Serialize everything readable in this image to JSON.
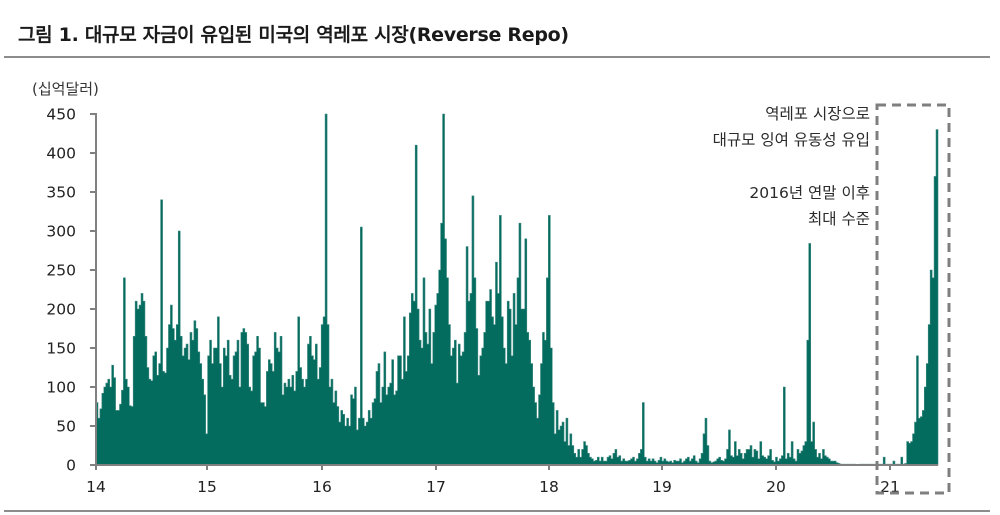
{
  "title": "그림 1. 대규모 자금이 유입된 미국의 역레포 시장(Reverse Repo)",
  "unit_label": "(십억달러)",
  "annotations": {
    "line1": "역레포 시장으로",
    "line2": "대규모 잉여 유동성 유입",
    "line3": "2016년 연말 이후",
    "line4": "최대 수준"
  },
  "colors": {
    "bar": "#046b5f",
    "axis": "#808080",
    "dash": "#7f7f7f",
    "text": "#222222"
  },
  "chart_data": {
    "type": "bar",
    "title": "그림 1. 대규모 자금이 유입된 미국의 역레포 시장(Reverse Repo)",
    "xlabel": "",
    "ylabel": "(십억달러)",
    "ylim": [
      0,
      450
    ],
    "yticks": [
      0,
      50,
      100,
      150,
      200,
      250,
      300,
      350,
      400,
      450
    ],
    "xticks": [
      "14",
      "15",
      "16",
      "17",
      "18",
      "19",
      "20",
      "21"
    ],
    "x_range": [
      "2014-01",
      "2021-06"
    ],
    "grid": false,
    "legend": null,
    "highlight_box": {
      "from": "2020-11",
      "to": "2021-06",
      "note": "역레포 시장으로 대규모 잉여 유동성 유입 / 2016년 연말 이후 최대 수준"
    },
    "series": [
      {
        "name": "Reverse Repo",
        "frequency": "weekly (approx.)",
        "values": [
          80,
          60,
          72,
          92,
          100,
          105,
          110,
          100,
          128,
          112,
          70,
          70,
          78,
          96,
          240,
          110,
          100,
          76,
          75,
          165,
          210,
          200,
          205,
          220,
          210,
          165,
          125,
          110,
          108,
          140,
          145,
          115,
          130,
          340,
          120,
          118,
          150,
          180,
          205,
          175,
          160,
          180,
          300,
          165,
          140,
          150,
          155,
          135,
          170,
          160,
          185,
          175,
          145,
          130,
          110,
          90,
          40,
          140,
          160,
          130,
          150,
          150,
          190,
          130,
          100,
          150,
          140,
          160,
          115,
          110,
          140,
          145,
          160,
          100,
          170,
          175,
          170,
          155,
          100,
          95,
          140,
          145,
          165,
          150,
          80,
          80,
          75,
          120,
          135,
          130,
          120,
          170,
          150,
          145,
          165,
          90,
          105,
          100,
          110,
          100,
          115,
          95,
          120,
          190,
          125,
          110,
          100,
          110,
          155,
          165,
          140,
          135,
          155,
          110,
          125,
          180,
          190,
          450,
          180,
          100,
          110,
          80,
          95,
          75,
          55,
          70,
          65,
          50,
          60,
          50,
          90,
          85,
          100,
          45,
          60,
          305,
          60,
          50,
          55,
          70,
          60,
          80,
          85,
          120,
          130,
          80,
          100,
          145,
          90,
          100,
          105,
          135,
          90,
          95,
          140,
          140,
          110,
          190,
          120,
          140,
          195,
          220,
          210,
          410,
          200,
          160,
          150,
          240,
          170,
          155,
          200,
          130,
          170,
          205,
          220,
          250,
          310,
          450,
          290,
          240,
          180,
          140,
          150,
          160,
          105,
          155,
          140,
          145,
          170,
          280,
          210,
          220,
          345,
          240,
          175,
          115,
          140,
          150,
          170,
          210,
          210,
          225,
          190,
          180,
          260,
          220,
          320,
          190,
          150,
          130,
          210,
          200,
          140,
          220,
          180,
          240,
          310,
          200,
          200,
          290,
          170,
          160,
          130,
          100,
          80,
          60,
          90,
          130,
          170,
          160,
          240,
          320,
          150,
          80,
          40,
          70,
          45,
          50,
          55,
          30,
          60,
          25,
          40,
          25,
          15,
          10,
          20,
          10,
          20,
          30,
          25,
          15,
          10,
          8,
          5,
          6,
          10,
          5,
          10,
          5,
          5,
          10,
          12,
          8,
          15,
          20,
          10,
          12,
          5,
          8,
          5,
          5,
          6,
          8,
          10,
          5,
          8,
          15,
          20,
          80,
          10,
          5,
          8,
          5,
          8,
          5,
          3,
          6,
          10,
          5,
          8,
          5,
          4,
          5,
          3,
          6,
          5,
          5,
          8,
          3,
          5,
          8,
          10,
          5,
          8,
          12,
          5,
          3,
          8,
          15,
          40,
          60,
          25,
          5,
          3,
          4,
          5,
          8,
          10,
          6,
          5,
          8,
          20,
          45,
          12,
          10,
          30,
          12,
          20,
          15,
          8,
          15,
          20,
          20,
          25,
          10,
          20,
          18,
          8,
          30,
          12,
          10,
          8,
          12,
          20,
          6,
          4,
          10,
          5,
          8,
          12,
          100,
          8,
          15,
          10,
          30,
          8,
          5,
          20,
          15,
          18,
          25,
          30,
          160,
          284,
          30,
          55,
          20,
          10,
          15,
          8,
          20,
          12,
          10,
          8,
          5,
          5,
          5,
          3,
          2,
          1,
          1,
          1,
          1,
          1,
          1,
          1,
          1,
          0,
          0,
          1,
          1,
          1,
          1,
          1,
          1,
          1,
          1,
          1,
          1,
          1,
          1,
          10,
          1,
          1,
          1,
          1,
          5,
          1,
          1,
          1,
          10,
          1,
          2,
          30,
          28,
          30,
          40,
          55,
          140,
          60,
          62,
          70,
          100,
          130,
          180,
          250,
          240,
          370,
          430
        ]
      }
    ]
  }
}
